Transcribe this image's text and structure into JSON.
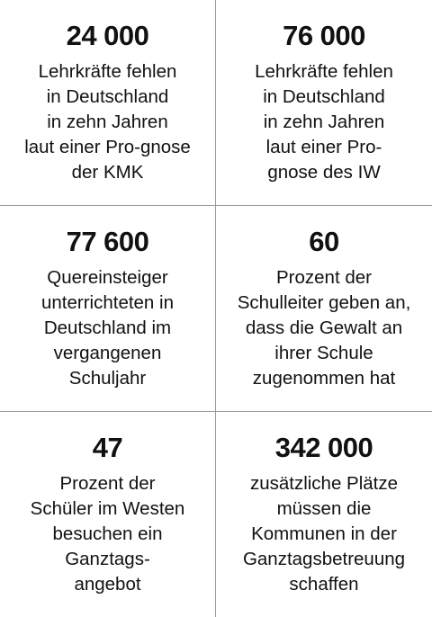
{
  "stats": [
    {
      "number": "24 000",
      "label": "Lehrkräfte fehlen\nin Deutschland\nin zehn Jahren\nlaut einer Pro-gnose\nder KMK"
    },
    {
      "number": "76 000",
      "label": "Lehrkräfte fehlen\nin Deutschland\nin zehn Jahren\nlaut einer Pro-\ngnose des IW"
    },
    {
      "number": "77 600",
      "label": "Quereinsteiger\nunterrichteten in\nDeutschland im\nvergangenen\nSchuljahr"
    },
    {
      "number": "60",
      "label": "Prozent der\nSchulleiter geben an,\ndass die Gewalt an\nihrer Schule\nzugenommen hat"
    },
    {
      "number": "47",
      "label": "Prozent der\nSchüler im Westen\nbesuchen ein\nGanztags-\nangebot"
    },
    {
      "number": "342 000",
      "label": "zusätzliche Plätze\nmüssen die\nKommunen in der\nGanztagsbetreuung\nschaffen"
    }
  ]
}
